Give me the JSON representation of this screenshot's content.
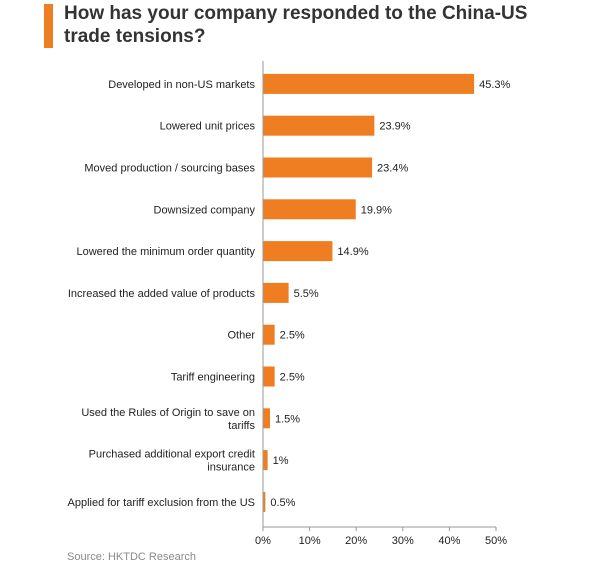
{
  "title": "How has your company responded to the China-US trade tensions?",
  "source": "Source: HKTDC Research",
  "colors": {
    "bar": "#ef7d22",
    "accent": "#ef7d22",
    "axis": "#999999"
  },
  "chart_data": {
    "type": "bar",
    "orientation": "horizontal",
    "categories": [
      "Developed in non-US markets",
      "Lowered unit prices",
      "Moved production / sourcing bases",
      "Downsized company",
      "Lowered the minimum order quantity",
      "Increased the added value of products",
      "Other",
      "Tariff engineering",
      "Used the Rules of Origin to save on tariffs",
      "Purchased additional export credit insurance",
      "Applied for tariff exclusion from the US"
    ],
    "category_lines": [
      [
        "Developed in non-US markets"
      ],
      [
        "Lowered unit prices"
      ],
      [
        "Moved production / sourcing bases"
      ],
      [
        "Downsized company"
      ],
      [
        "Lowered the minimum order quantity"
      ],
      [
        "Increased the added value of products"
      ],
      [
        "Other"
      ],
      [
        "Tariff engineering"
      ],
      [
        "Used the Rules of Origin to save on",
        "tariffs"
      ],
      [
        "Purchased additional export credit",
        "insurance"
      ],
      [
        "Applied for tariff exclusion from the US"
      ]
    ],
    "values": [
      45.3,
      23.9,
      23.4,
      19.9,
      14.9,
      5.5,
      2.5,
      2.5,
      1.5,
      1,
      0.5
    ],
    "value_labels": [
      "45.3%",
      "23.9%",
      "23.4%",
      "19.9%",
      "14.9%",
      "5.5%",
      "2.5%",
      "2.5%",
      "1.5%",
      "1%",
      "0.5%"
    ],
    "xlim": [
      0,
      50
    ],
    "x_ticks": [
      0,
      10,
      20,
      30,
      40,
      50
    ],
    "x_tick_labels": [
      "0%",
      "10%",
      "20%",
      "30%",
      "40%",
      "50%"
    ],
    "grid": false,
    "legend": "none"
  }
}
